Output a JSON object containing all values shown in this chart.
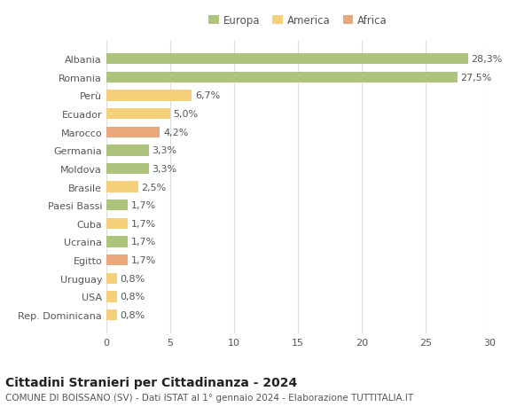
{
  "countries": [
    "Albania",
    "Romania",
    "Perù",
    "Ecuador",
    "Marocco",
    "Germania",
    "Moldova",
    "Brasile",
    "Paesi Bassi",
    "Cuba",
    "Ucraina",
    "Egitto",
    "Uruguay",
    "USA",
    "Rep. Dominicana"
  ],
  "values": [
    28.3,
    27.5,
    6.7,
    5.0,
    4.2,
    3.3,
    3.3,
    2.5,
    1.7,
    1.7,
    1.7,
    1.7,
    0.8,
    0.8,
    0.8
  ],
  "labels": [
    "28,3%",
    "27,5%",
    "6,7%",
    "5,0%",
    "4,2%",
    "3,3%",
    "3,3%",
    "2,5%",
    "1,7%",
    "1,7%",
    "1,7%",
    "1,7%",
    "0,8%",
    "0,8%",
    "0,8%"
  ],
  "continents": [
    "Europa",
    "Europa",
    "America",
    "America",
    "Africa",
    "Europa",
    "Europa",
    "America",
    "Europa",
    "America",
    "Europa",
    "Africa",
    "America",
    "America",
    "America"
  ],
  "colors": {
    "Europa": "#adc47d",
    "America": "#f5d07a",
    "Africa": "#e8a87c"
  },
  "title": "Cittadini Stranieri per Cittadinanza - 2024",
  "subtitle": "COMUNE DI BOISSANO (SV) - Dati ISTAT al 1° gennaio 2024 - Elaborazione TUTTITALIA.IT",
  "xlim": [
    0,
    30
  ],
  "xticks": [
    0,
    5,
    10,
    15,
    20,
    25,
    30
  ],
  "bg_color": "#ffffff",
  "grid_color": "#dddddd",
  "title_fontsize": 10,
  "subtitle_fontsize": 7.5,
  "tick_fontsize": 8,
  "label_fontsize": 8,
  "legend_fontsize": 8.5,
  "bar_height": 0.6
}
